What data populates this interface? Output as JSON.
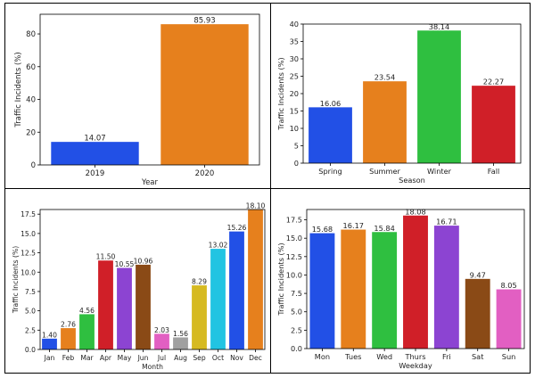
{
  "chart_data": [
    {
      "type": "bar",
      "title": "",
      "xlabel": "Year",
      "ylabel": "Traffic Incidents (%)",
      "categories": [
        "2019",
        "2020"
      ],
      "values": [
        14.07,
        85.93
      ],
      "data_labels": [
        "14.07",
        "85.93"
      ],
      "colors": [
        "#2250e6",
        "#e6801d"
      ],
      "ylim": [
        0,
        92
      ],
      "yticks": [
        0,
        20,
        40,
        60,
        80
      ],
      "ytick_labels": [
        "0",
        "20",
        "40",
        "60",
        "80"
      ],
      "grid": false,
      "legend": "none"
    },
    {
      "type": "bar",
      "title": "",
      "xlabel": "Season",
      "ylabel": "Traffic Incidents (%)",
      "categories": [
        "Spring",
        "Summer",
        "Winter",
        "Fall"
      ],
      "values": [
        16.06,
        23.54,
        38.14,
        22.27
      ],
      "data_labels": [
        "16.06",
        "23.54",
        "38.14",
        "22.27"
      ],
      "colors": [
        "#2250e6",
        "#e6801d",
        "#2fbf40",
        "#d01f28"
      ],
      "ylim": [
        0,
        40
      ],
      "yticks": [
        0,
        5,
        10,
        15,
        20,
        25,
        30,
        35,
        40
      ],
      "ytick_labels": [
        "0",
        "5",
        "10",
        "15",
        "20",
        "25",
        "30",
        "35",
        "40"
      ],
      "grid": false,
      "legend": "none"
    },
    {
      "type": "bar",
      "title": "",
      "xlabel": "Month",
      "ylabel": "Traffic Incidents (%)",
      "categories": [
        "Jan",
        "Feb",
        "Mar",
        "Apr",
        "May",
        "Jun",
        "Jul",
        "Aug",
        "Sep",
        "Oct",
        "Nov",
        "Dec"
      ],
      "values": [
        1.4,
        2.76,
        4.56,
        11.5,
        10.55,
        10.96,
        2.03,
        1.56,
        8.29,
        13.02,
        15.26,
        18.1
      ],
      "data_labels": [
        "1.40",
        "2.76",
        "4.56",
        "11.50",
        "10.55",
        "10.96",
        "2.03",
        "1.56",
        "8.29",
        "13.02",
        "15.26",
        "18.10"
      ],
      "colors": [
        "#2250e6",
        "#e6801d",
        "#2fbf40",
        "#d01f28",
        "#8c44d2",
        "#8a4a16",
        "#e25fc2",
        "#a0a0a0",
        "#d6ba21",
        "#22c4e2",
        "#2250e6",
        "#e6801d"
      ],
      "ylim": [
        0,
        18.1
      ],
      "yticks": [
        0,
        2.5,
        5,
        7.5,
        10,
        12.5,
        15,
        17.5
      ],
      "ytick_labels": [
        "0.0",
        "2.5",
        "5.0",
        "7.5",
        "10.0",
        "12.5",
        "15.0",
        "17.5"
      ],
      "grid": false,
      "legend": "none"
    },
    {
      "type": "bar",
      "title": "",
      "xlabel": "Weekday",
      "ylabel": "Traffic Incidents (%)",
      "categories": [
        "Mon",
        "Tues",
        "Wed",
        "Thurs",
        "Fri",
        "Sat",
        "Sun"
      ],
      "values": [
        15.68,
        16.17,
        15.84,
        18.08,
        16.71,
        9.47,
        8.05
      ],
      "data_labels": [
        "15.68",
        "16.17",
        "15.84",
        "18.08",
        "16.71",
        "9.47",
        "8.05"
      ],
      "colors": [
        "#2250e6",
        "#e6801d",
        "#2fbf40",
        "#d01f28",
        "#8c44d2",
        "#8a4a16",
        "#e25fc2"
      ],
      "ylim": [
        0,
        18.9
      ],
      "yticks": [
        0,
        2.5,
        5,
        7.5,
        10,
        12.5,
        15,
        17.5
      ],
      "ytick_labels": [
        "0.0",
        "2.5",
        "5.0",
        "7.5",
        "10.0",
        "12.5",
        "15.0",
        "17.5"
      ],
      "grid": false,
      "legend": "none"
    }
  ]
}
